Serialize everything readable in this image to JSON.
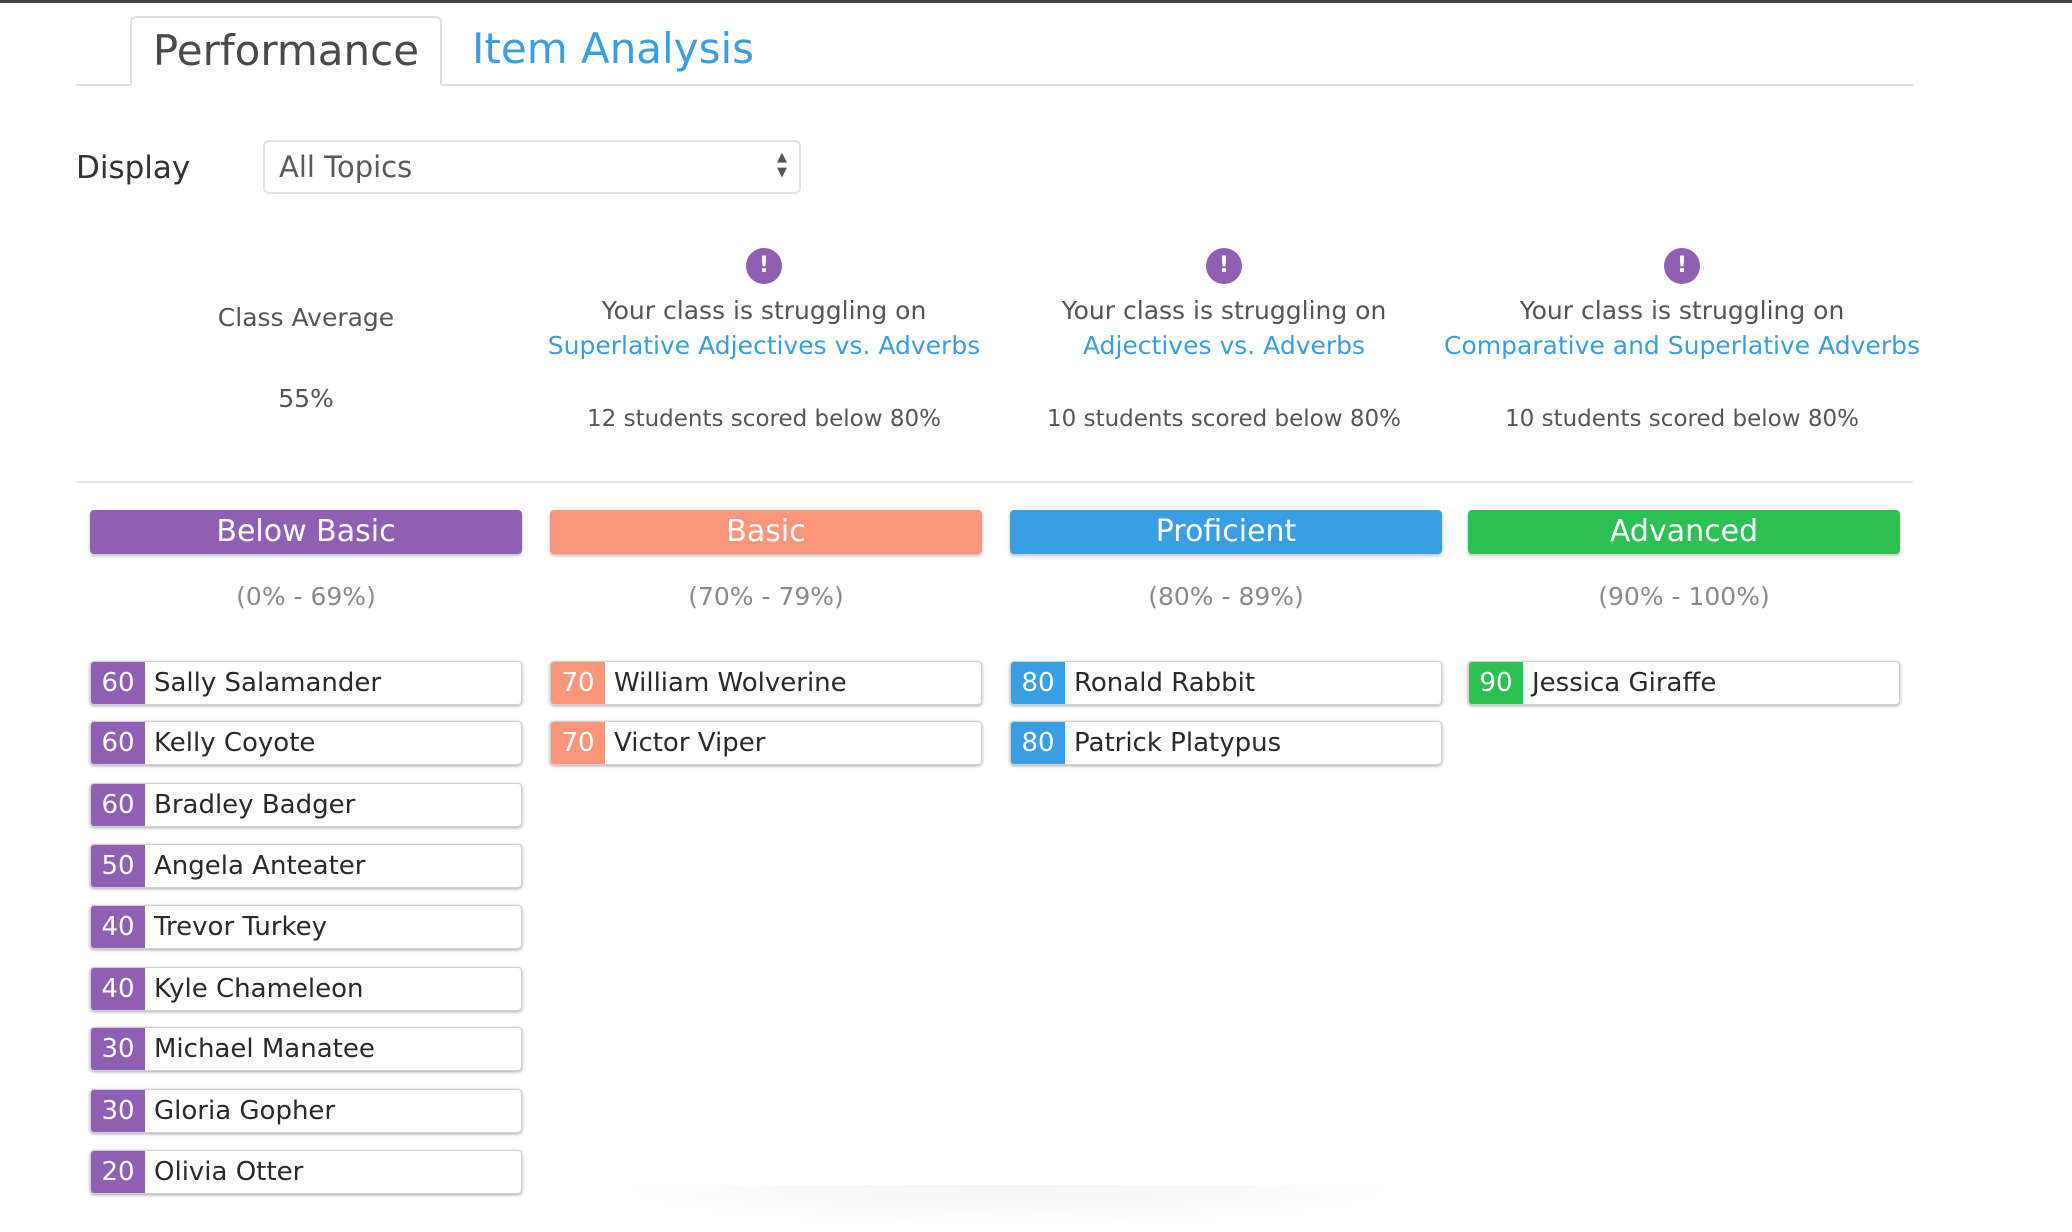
{
  "tabs": [
    {
      "label": "Performance"
    },
    {
      "label": "Item Analysis"
    }
  ],
  "display": {
    "label": "Display",
    "selected": "All Topics"
  },
  "summary": {
    "class_average_label": "Class Average",
    "class_average_value": "55%",
    "alerts": [
      {
        "text": "Your class is struggling on",
        "topic": "Superlative Adjectives vs. Adverbs",
        "count": "12 students scored below 80%"
      },
      {
        "text": "Your class is struggling on",
        "topic": "Adjectives vs. Adverbs",
        "count": "10 students scored below 80%"
      },
      {
        "text": "Your class is struggling on",
        "topic": "Comparative and Superlative Adverbs",
        "count": "10 students scored below 80%"
      }
    ]
  },
  "colors": {
    "below_basic": "#8e5fb3",
    "basic": "#f9967b",
    "proficient": "#3a9ee3",
    "advanced": "#2dc155",
    "link": "#3a9ee3"
  },
  "bands": [
    {
      "title": "Below Basic",
      "range": "(0% - 69%)",
      "color": "#8e5fb3",
      "students": [
        {
          "score": "60",
          "name": "Sally Salamander"
        },
        {
          "score": "60",
          "name": "Kelly Coyote"
        },
        {
          "score": "60",
          "name": "Bradley Badger"
        },
        {
          "score": "50",
          "name": "Angela Anteater"
        },
        {
          "score": "40",
          "name": "Trevor Turkey"
        },
        {
          "score": "40",
          "name": "Kyle Chameleon"
        },
        {
          "score": "30",
          "name": "Michael Manatee"
        },
        {
          "score": "30",
          "name": "Gloria Gopher"
        },
        {
          "score": "20",
          "name": "Olivia Otter"
        }
      ]
    },
    {
      "title": "Basic",
      "range": "(70% - 79%)",
      "color": "#f9967b",
      "students": [
        {
          "score": "70",
          "name": "William Wolverine"
        },
        {
          "score": "70",
          "name": "Victor Viper"
        }
      ]
    },
    {
      "title": "Proficient",
      "range": "(80% - 89%)",
      "color": "#3a9ee3",
      "students": [
        {
          "score": "80",
          "name": "Ronald Rabbit"
        },
        {
          "score": "80",
          "name": "Patrick Platypus"
        }
      ]
    },
    {
      "title": "Advanced",
      "range": "(90% - 100%)",
      "color": "#2dc155",
      "students": [
        {
          "score": "90",
          "name": "Jessica Giraffe"
        }
      ]
    }
  ]
}
